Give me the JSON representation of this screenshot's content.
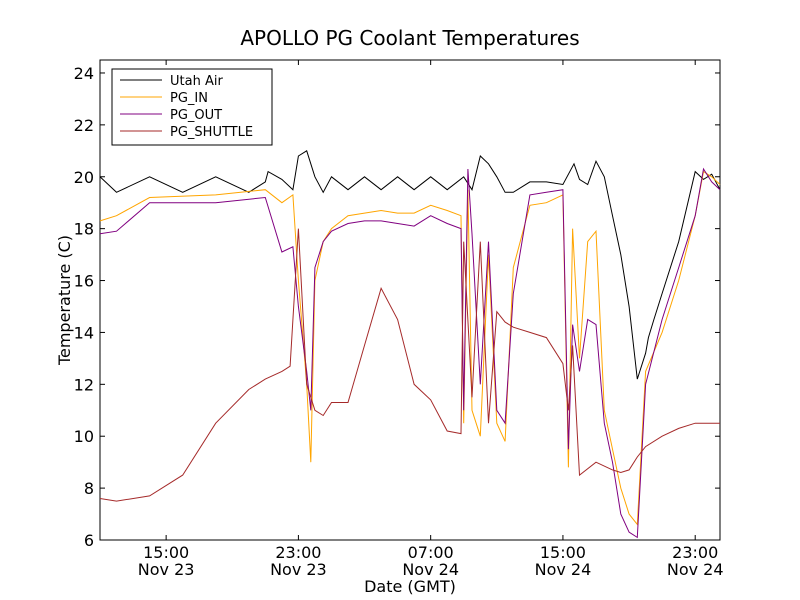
{
  "chart_data": {
    "type": "line",
    "title": "APOLLO PG Coolant Temperatures",
    "xlabel": "Date (GMT)",
    "ylabel": "Temperature (C)",
    "xlim": [
      "2024-11-23T11:00",
      "2024-11-25T00:30"
    ],
    "ylim": [
      6,
      24.5
    ],
    "yticks": [
      6,
      8,
      10,
      12,
      14,
      16,
      18,
      20,
      22,
      24
    ],
    "xticks": [
      {
        "x": "2024-11-23T15:00",
        "time": "15:00",
        "date": "Nov 23"
      },
      {
        "x": "2024-11-23T23:00",
        "time": "23:00",
        "date": "Nov 23"
      },
      {
        "x": "2024-11-24T07:00",
        "time": "07:00",
        "date": "Nov 24"
      },
      {
        "x": "2024-11-24T15:00",
        "time": "15:00",
        "date": "Nov 24"
      },
      {
        "x": "2024-11-24T23:00",
        "time": "23:00",
        "date": "Nov 24"
      }
    ],
    "grid": false,
    "legend": "top-left",
    "series": [
      {
        "name": "Utah Air",
        "color": "#000000",
        "x": [
          "2024-11-23T11:00",
          "2024-11-23T12:00",
          "2024-11-23T14:00",
          "2024-11-23T16:00",
          "2024-11-23T18:00",
          "2024-11-23T20:00",
          "2024-11-23T21:00",
          "2024-11-23T21:10",
          "2024-11-23T22:00",
          "2024-11-23T22:40",
          "2024-11-23T23:00",
          "2024-11-23T23:30",
          "2024-11-24T00:00",
          "2024-11-24T00:30",
          "2024-11-24T01:00",
          "2024-11-24T02:00",
          "2024-11-24T03:00",
          "2024-11-24T04:00",
          "2024-11-24T05:00",
          "2024-11-24T06:00",
          "2024-11-24T07:00",
          "2024-11-24T08:00",
          "2024-11-24T09:00",
          "2024-11-24T09:30",
          "2024-11-24T10:00",
          "2024-11-24T10:30",
          "2024-11-24T11:00",
          "2024-11-24T11:30",
          "2024-11-24T12:00",
          "2024-11-24T13:00",
          "2024-11-24T14:00",
          "2024-11-24T15:00",
          "2024-11-24T15:40",
          "2024-11-24T16:00",
          "2024-11-24T16:30",
          "2024-11-24T17:00",
          "2024-11-24T17:30",
          "2024-11-24T18:00",
          "2024-11-24T18:30",
          "2024-11-24T19:00",
          "2024-11-24T19:30",
          "2024-11-24T20:00",
          "2024-11-24T20:10",
          "2024-11-24T20:30",
          "2024-11-24T21:00",
          "2024-11-24T22:00",
          "2024-11-24T23:00",
          "2024-11-24T23:30",
          "2024-11-25T00:00",
          "2024-11-25T00:30"
        ],
        "y": [
          20.0,
          19.4,
          20.0,
          19.4,
          20.0,
          19.4,
          19.8,
          20.2,
          19.9,
          19.5,
          20.8,
          21.0,
          20.0,
          19.4,
          20.0,
          19.5,
          20.0,
          19.5,
          20.0,
          19.5,
          20.0,
          19.5,
          20.0,
          19.5,
          20.8,
          20.5,
          20.0,
          19.4,
          19.4,
          19.8,
          19.8,
          19.7,
          20.5,
          19.9,
          19.7,
          20.6,
          20.0,
          18.5,
          17.0,
          15.0,
          12.2,
          13.2,
          13.8,
          14.5,
          15.5,
          17.5,
          20.2,
          19.9,
          20.1,
          19.5
        ]
      },
      {
        "name": "PG_IN",
        "color": "#ffa500",
        "x": [
          "2024-11-23T11:00",
          "2024-11-23T12:00",
          "2024-11-23T14:00",
          "2024-11-23T18:00",
          "2024-11-23T21:00",
          "2024-11-23T22:00",
          "2024-11-23T22:40",
          "2024-11-23T23:00",
          "2024-11-23T23:30",
          "2024-11-23T23:45",
          "2024-11-24T00:00",
          "2024-11-24T00:30",
          "2024-11-24T01:00",
          "2024-11-24T02:00",
          "2024-11-24T03:00",
          "2024-11-24T04:00",
          "2024-11-24T05:00",
          "2024-11-24T06:00",
          "2024-11-24T07:00",
          "2024-11-24T08:00",
          "2024-11-24T08:50",
          "2024-11-24T09:00",
          "2024-11-24T09:15",
          "2024-11-24T09:30",
          "2024-11-24T10:00",
          "2024-11-24T10:30",
          "2024-11-24T11:00",
          "2024-11-24T11:30",
          "2024-11-24T12:00",
          "2024-11-24T13:00",
          "2024-11-24T14:00",
          "2024-11-24T15:00",
          "2024-11-24T15:20",
          "2024-11-24T15:35",
          "2024-11-24T16:00",
          "2024-11-24T16:30",
          "2024-11-24T17:00",
          "2024-11-24T17:30",
          "2024-11-24T18:00",
          "2024-11-24T18:30",
          "2024-11-24T19:00",
          "2024-11-24T19:30",
          "2024-11-24T20:00",
          "2024-11-24T21:00",
          "2024-11-24T22:00",
          "2024-11-24T23:00",
          "2024-11-24T23:30",
          "2024-11-25T00:00",
          "2024-11-25T00:30"
        ],
        "y": [
          18.3,
          18.5,
          19.2,
          19.3,
          19.5,
          19.0,
          19.3,
          16.0,
          12.0,
          9.0,
          16.0,
          17.5,
          18.0,
          18.5,
          18.6,
          18.7,
          18.6,
          18.6,
          18.9,
          18.7,
          18.5,
          10.5,
          19.5,
          11.0,
          10.0,
          17.0,
          10.5,
          9.8,
          16.5,
          18.9,
          19.0,
          19.3,
          8.8,
          18.0,
          13.0,
          17.5,
          17.9,
          11.0,
          9.5,
          8.0,
          7.0,
          6.6,
          12.5,
          14.0,
          16.0,
          18.5,
          20.2,
          20.0,
          19.7
        ]
      },
      {
        "name": "PG_OUT",
        "color": "#800080",
        "x": [
          "2024-11-23T11:00",
          "2024-11-23T12:00",
          "2024-11-23T14:00",
          "2024-11-23T18:00",
          "2024-11-23T21:00",
          "2024-11-23T22:00",
          "2024-11-23T22:40",
          "2024-11-23T23:00",
          "2024-11-23T23:30",
          "2024-11-23T23:45",
          "2024-11-24T00:00",
          "2024-11-24T00:30",
          "2024-11-24T01:00",
          "2024-11-24T02:00",
          "2024-11-24T03:00",
          "2024-11-24T04:00",
          "2024-11-24T05:00",
          "2024-11-24T06:00",
          "2024-11-24T07:00",
          "2024-11-24T08:00",
          "2024-11-24T08:50",
          "2024-11-24T09:00",
          "2024-11-24T09:15",
          "2024-11-24T09:30",
          "2024-11-24T10:00",
          "2024-11-24T10:30",
          "2024-11-24T11:00",
          "2024-11-24T11:30",
          "2024-11-24T12:00",
          "2024-11-24T13:00",
          "2024-11-24T14:00",
          "2024-11-24T15:00",
          "2024-11-24T15:20",
          "2024-11-24T15:35",
          "2024-11-24T16:00",
          "2024-11-24T16:30",
          "2024-11-24T17:00",
          "2024-11-24T17:30",
          "2024-11-24T18:00",
          "2024-11-24T18:30",
          "2024-11-24T19:00",
          "2024-11-24T19:30",
          "2024-11-24T20:00",
          "2024-11-24T21:00",
          "2024-11-24T22:00",
          "2024-11-24T23:00",
          "2024-11-24T23:30",
          "2024-11-25T00:00",
          "2024-11-25T00:30"
        ],
        "y": [
          17.8,
          17.9,
          19.0,
          19.0,
          19.2,
          17.1,
          17.3,
          15.0,
          12.5,
          11.0,
          16.5,
          17.5,
          17.9,
          18.2,
          18.3,
          18.3,
          18.2,
          18.1,
          18.5,
          18.2,
          18.0,
          11.0,
          20.3,
          17.8,
          12.0,
          17.5,
          11.0,
          10.5,
          15.5,
          19.3,
          19.4,
          19.5,
          9.5,
          14.3,
          12.5,
          14.5,
          14.3,
          10.5,
          9.0,
          7.0,
          6.3,
          6.1,
          12.0,
          14.5,
          16.5,
          18.5,
          20.3,
          19.8,
          19.5
        ]
      },
      {
        "name": "PG_SHUTTLE",
        "color": "#a52a2a",
        "x": [
          "2024-11-23T11:00",
          "2024-11-23T12:00",
          "2024-11-23T14:00",
          "2024-11-23T16:00",
          "2024-11-23T18:00",
          "2024-11-23T20:00",
          "2024-11-23T21:00",
          "2024-11-23T22:00",
          "2024-11-23T22:30",
          "2024-11-23T23:00",
          "2024-11-23T23:30",
          "2024-11-24T00:00",
          "2024-11-24T00:30",
          "2024-11-24T01:00",
          "2024-11-24T02:00",
          "2024-11-24T03:00",
          "2024-11-24T04:00",
          "2024-11-24T05:00",
          "2024-11-24T06:00",
          "2024-11-24T07:00",
          "2024-11-24T08:00",
          "2024-11-24T08:50",
          "2024-11-24T09:00",
          "2024-11-24T09:30",
          "2024-11-24T10:00",
          "2024-11-24T10:30",
          "2024-11-24T11:00",
          "2024-11-24T11:30",
          "2024-11-24T12:00",
          "2024-11-24T13:00",
          "2024-11-24T14:00",
          "2024-11-24T15:00",
          "2024-11-24T15:20",
          "2024-11-24T15:35",
          "2024-11-24T16:00",
          "2024-11-24T17:00",
          "2024-11-24T18:00",
          "2024-11-24T18:30",
          "2024-11-24T19:00",
          "2024-11-24T19:30",
          "2024-11-24T20:00",
          "2024-11-24T21:00",
          "2024-11-24T22:00",
          "2024-11-24T23:00",
          "2024-11-24T23:30",
          "2024-11-25T00:00",
          "2024-11-25T00:30"
        ],
        "y": [
          7.6,
          7.5,
          7.7,
          8.5,
          10.5,
          11.8,
          12.2,
          12.5,
          12.7,
          18.0,
          12.0,
          11.0,
          10.8,
          11.3,
          11.3,
          13.5,
          15.7,
          14.5,
          12.0,
          11.4,
          10.2,
          10.1,
          17.5,
          11.5,
          17.5,
          10.5,
          14.8,
          14.4,
          14.2,
          14.0,
          13.8,
          12.8,
          11.0,
          13.5,
          8.5,
          9.0,
          8.7,
          8.6,
          8.7,
          9.2,
          9.6,
          10.0,
          10.3,
          10.5,
          10.5,
          10.5,
          10.5
        ]
      }
    ]
  }
}
